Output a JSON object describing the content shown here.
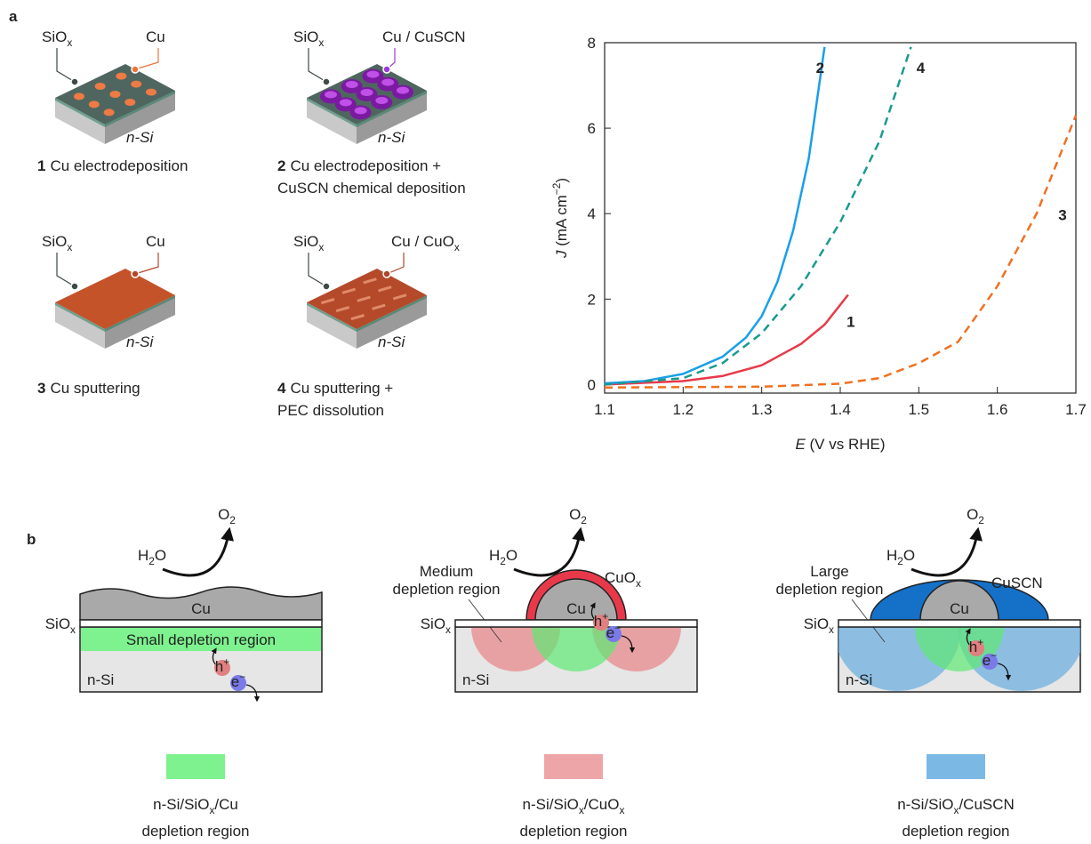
{
  "figure": {
    "panel_labels": [
      "a",
      "b"
    ],
    "substrate": "n-Si",
    "samples": [
      {
        "num": "1",
        "desc": [
          "Cu electrodeposition"
        ],
        "color": "#e8394a",
        "siox": [
          "SiO",
          {
            "sub": "x"
          }
        ],
        "metal": "Cu"
      },
      {
        "num": "2",
        "desc": [
          "Cu electrodeposition +",
          "CuSCN chemical deposition"
        ],
        "color": "#1a9fe8",
        "siox": [
          "SiO",
          {
            "sub": "x"
          }
        ],
        "metal": "Cu / CuSCN"
      },
      {
        "num": "3",
        "desc": [
          "Cu sputtering"
        ],
        "color": "#f07020",
        "siox": [
          "SiO",
          {
            "sub": "x"
          }
        ],
        "metal": "Cu"
      },
      {
        "num": "4",
        "desc": [
          "Cu sputtering +",
          "PEC dissolution"
        ],
        "color": "#1a9a90",
        "siox": [
          "SiO",
          {
            "sub": "x"
          }
        ],
        "metal": [
          "Cu / CuO",
          {
            "sub": "x"
          }
        ]
      }
    ],
    "diagrams": [
      {
        "o2": [
          "O",
          {
            "sub": "2"
          }
        ],
        "h2o": [
          "H",
          {
            "sub": "2"
          },
          "O"
        ],
        "core": "Cu",
        "siox": [
          "SiO",
          {
            "sub": "x"
          }
        ],
        "region": [
          "Small depletion region"
        ],
        "h": [
          "h",
          {
            "sup": "+"
          }
        ],
        "e": [
          "e",
          {
            "sup": "−"
          }
        ],
        "substrate": "n-Si"
      },
      {
        "o2": [
          "O",
          {
            "sub": "2"
          }
        ],
        "h2o": [
          "H",
          {
            "sub": "2"
          },
          "O"
        ],
        "core": "Cu",
        "shell": [
          "CuO",
          {
            "sub": "x"
          }
        ],
        "siox": [
          "SiO",
          {
            "sub": "x"
          }
        ],
        "region": [
          "Medium",
          "depletion region"
        ],
        "h": [
          "h",
          {
            "sup": "+"
          }
        ],
        "e": [
          "e",
          {
            "sup": "−"
          }
        ],
        "substrate": "n-Si"
      },
      {
        "o2": [
          "O",
          {
            "sub": "2"
          }
        ],
        "h2o": [
          "H",
          {
            "sub": "2"
          },
          "O"
        ],
        "core": "Cu",
        "shell": "CuSCN",
        "siox": [
          "SiO",
          {
            "sub": "x"
          }
        ],
        "region": [
          "Large",
          "depletion region"
        ],
        "h": [
          "h",
          {
            "sup": "+"
          }
        ],
        "e": [
          "e",
          {
            "sup": "−"
          }
        ],
        "substrate": "n-Si"
      }
    ],
    "legend": [
      {
        "color": "#7df28e",
        "lines": [
          [
            "n-Si/SiO",
            {
              "sub": "x"
            },
            "/Cu"
          ],
          "depletion region"
        ]
      },
      {
        "color": "#eea5a8",
        "lines": [
          [
            "n-Si/SiO",
            {
              "sub": "x"
            },
            "/CuO",
            {
              "sub": "x"
            }
          ],
          "depletion region"
        ]
      },
      {
        "color": "#7cb8e4",
        "lines": [
          [
            "n-Si/SiO",
            {
              "sub": "x"
            },
            "/CuSCN"
          ],
          "depletion region"
        ]
      }
    ]
  },
  "chart_data": {
    "type": "line",
    "xlabel": [
      {
        "i": "E"
      },
      " (V vs RHE)"
    ],
    "ylabel": [
      {
        "i": "J"
      },
      " (mA cm",
      {
        "sup": "−2"
      },
      ")"
    ],
    "xlim": [
      1.1,
      1.7
    ],
    "ylim": [
      -0.2,
      8
    ],
    "xticks": [
      1.1,
      1.2,
      1.3,
      1.4,
      1.5,
      1.6,
      1.7
    ],
    "yticks": [
      0,
      2,
      4,
      6,
      8
    ],
    "series": [
      {
        "name": "1",
        "color": "#e8394a",
        "dash": false,
        "x": [
          1.1,
          1.2,
          1.25,
          1.3,
          1.35,
          1.38,
          1.41
        ],
        "values": [
          0,
          0.08,
          0.2,
          0.45,
          0.95,
          1.4,
          2.1
        ]
      },
      {
        "name": "2",
        "color": "#1a9fe8",
        "dash": false,
        "x": [
          1.1,
          1.15,
          1.2,
          1.25,
          1.28,
          1.3,
          1.32,
          1.34,
          1.36,
          1.38
        ],
        "values": [
          0.03,
          0.08,
          0.25,
          0.65,
          1.1,
          1.6,
          2.4,
          3.6,
          5.3,
          7.9
        ]
      },
      {
        "name": "3",
        "color": "#f07020",
        "dash": true,
        "x": [
          1.1,
          1.3,
          1.4,
          1.45,
          1.5,
          1.55,
          1.6,
          1.65,
          1.7
        ],
        "values": [
          -0.07,
          -0.05,
          0.02,
          0.15,
          0.5,
          1.0,
          2.3,
          4.0,
          6.3
        ]
      },
      {
        "name": "4",
        "color": "#1a9a90",
        "dash": true,
        "x": [
          1.1,
          1.2,
          1.25,
          1.3,
          1.35,
          1.4,
          1.45,
          1.49
        ],
        "values": [
          0,
          0.15,
          0.5,
          1.2,
          2.3,
          3.8,
          5.7,
          7.9
        ]
      }
    ]
  }
}
